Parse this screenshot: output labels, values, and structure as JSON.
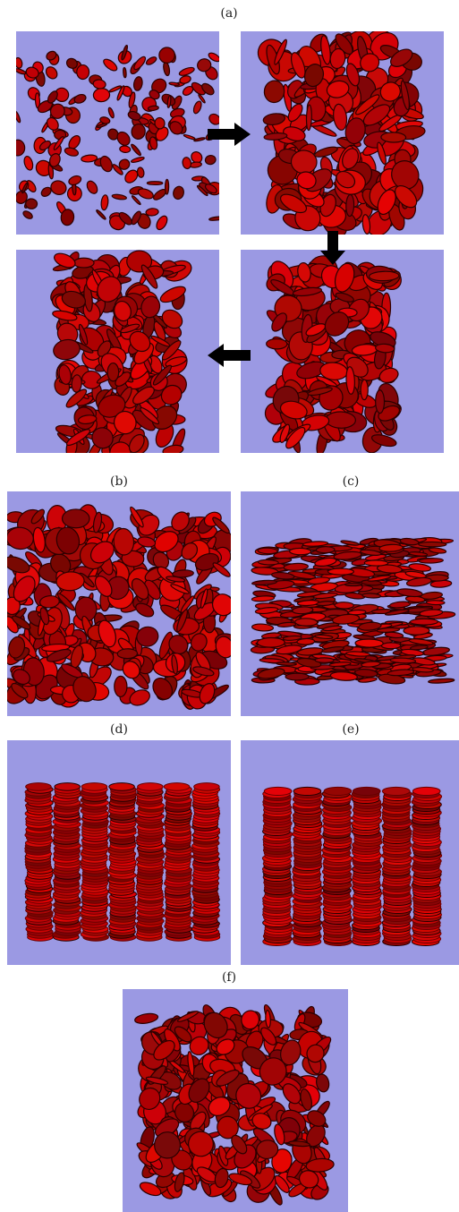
{
  "panels": {
    "labels": [
      "(a)",
      "(b)",
      "(c)",
      "(d)",
      "(e)",
      "(f)"
    ]
  }
}
